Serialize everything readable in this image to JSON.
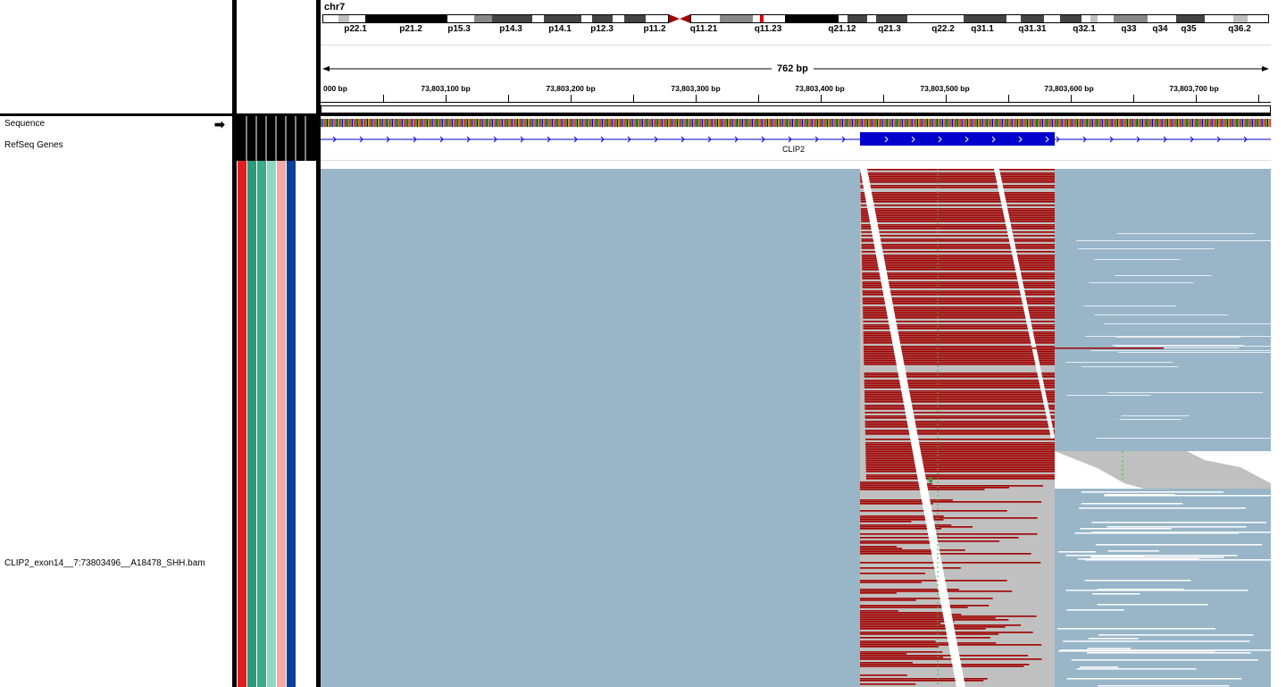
{
  "header": {
    "chromosome": "chr7",
    "span_label": "762 bp",
    "bands": [
      "p22.1",
      "p21.2",
      "p15.3",
      "p14.3",
      "p14.1",
      "p12.3",
      "p11.2",
      "q11.21",
      "q11.23",
      "q21.12",
      "q21.3",
      "q22.2",
      "q31.1",
      "q31.31",
      "q32.1",
      "q33",
      "q34",
      "q35",
      "q36.2"
    ],
    "ruler_ticks": [
      "000 bp",
      "73,803,100 bp",
      "73,803,200 bp",
      "73,803,300 bp",
      "73,803,400 bp",
      "73,803,500 bp",
      "73,803,600 bp",
      "73,803,700 bp"
    ]
  },
  "tracks": {
    "sequence": "Sequence",
    "refseq": "RefSeq Genes",
    "gene_name": "CLIP2",
    "alignment": "CLIP2_exon14__7:73803496__A18478_SHH.bam"
  },
  "colors": {
    "coverage_bg": "#98b6c8",
    "mismatch_red": "#a00000",
    "gray_read": "#c0c0c0",
    "gene_blue": "#0000cc",
    "attr_cols": [
      "#e02020",
      "#2a9a7a",
      "#3aaa8c",
      "#8ed8c0",
      "#f4a8a8",
      "#0a3f9a",
      "#ffffff"
    ]
  },
  "icons": {
    "sequence_strand": "right-arrow-icon"
  }
}
